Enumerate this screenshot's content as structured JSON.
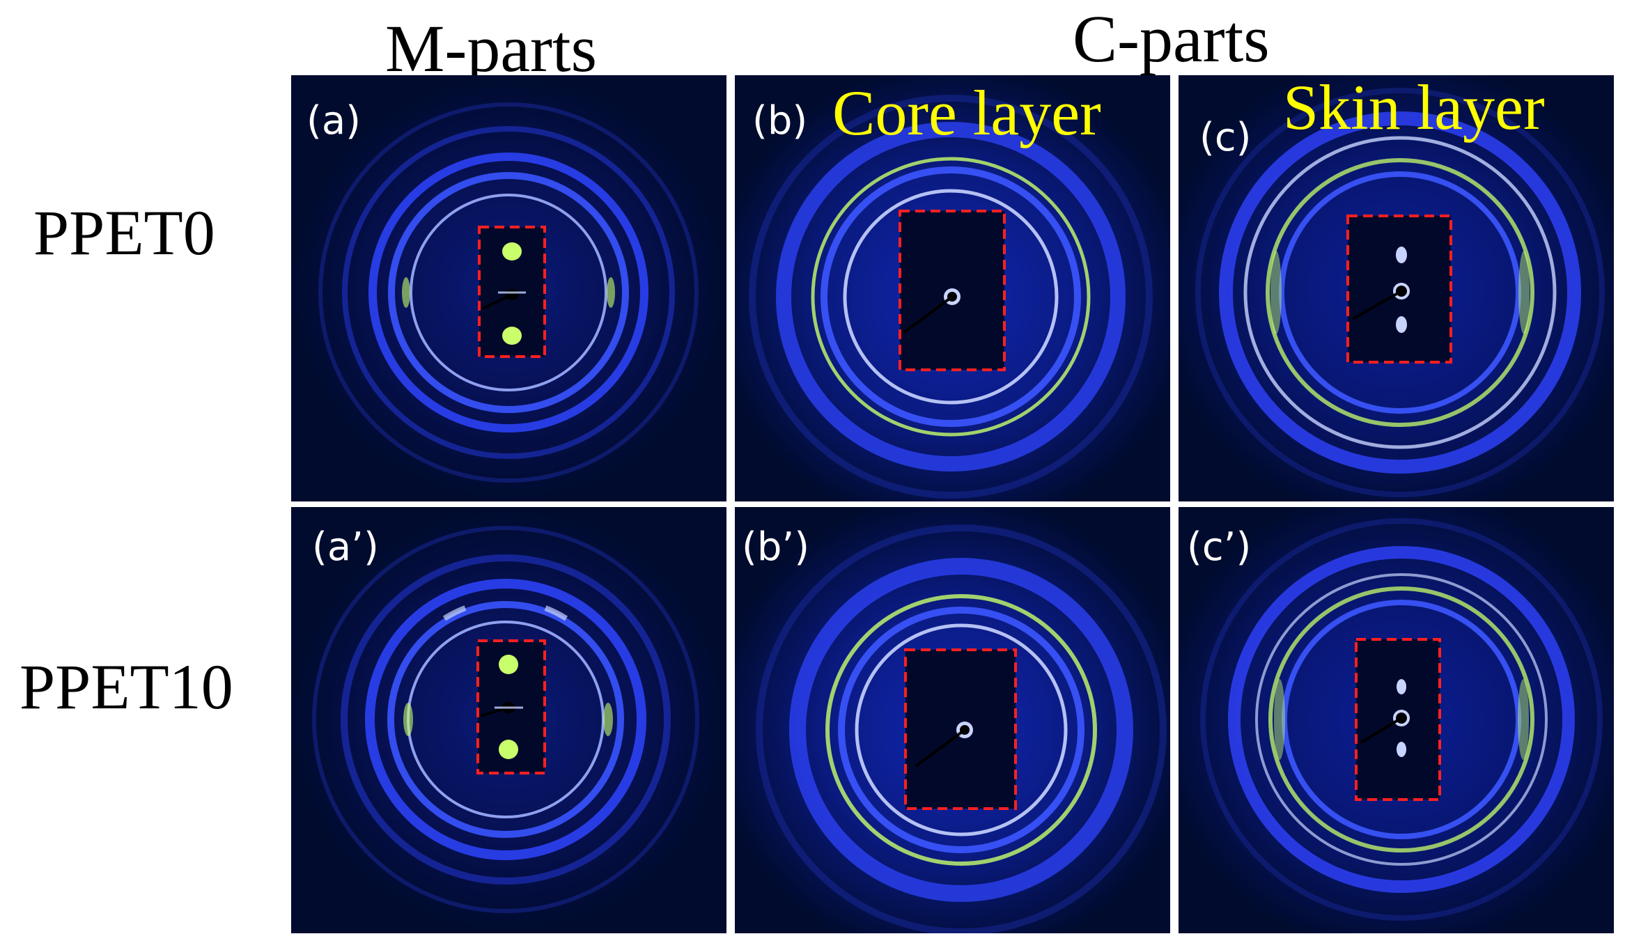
{
  "columns": {
    "m_parts": "M-parts",
    "c_parts": "C-parts"
  },
  "rows": {
    "row1": "PPET0",
    "row2": "PPET10"
  },
  "panels": {
    "a": "(a)",
    "b": "(b)",
    "c": "(c)",
    "a2": "(a’)",
    "b2": "(b’)",
    "c2": "(c’)"
  },
  "layers": {
    "core": "Core layer",
    "skin": "Skin layer"
  },
  "colors": {
    "background": "#000b2e",
    "ring": "#2a3cff",
    "ring_highlight": "#b9c6ff",
    "ring_accent": "#c8ff6a",
    "inset_box": "#ff2020",
    "label_white": "#ffffff",
    "label_yellow": "#ffff00"
  }
}
